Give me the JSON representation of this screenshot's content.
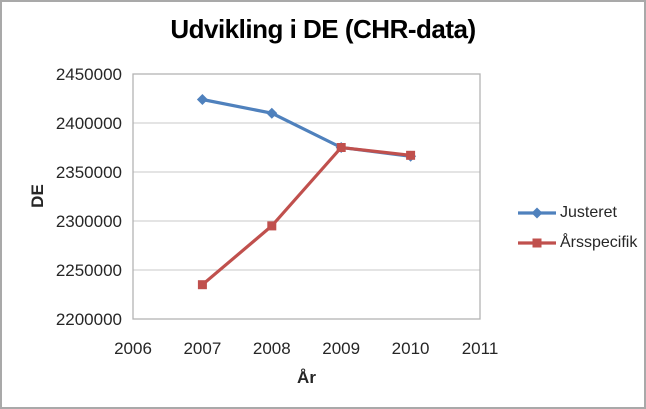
{
  "chart_data": {
    "type": "line",
    "title": "Udvikling i DE (CHR-data)",
    "xlabel": "År",
    "ylabel": "DE",
    "x": [
      2007,
      2008,
      2009,
      2010
    ],
    "series": [
      {
        "name": "Justeret",
        "color": "#4F81BD",
        "marker": "diamond",
        "values": [
          2424000,
          2410000,
          2375000,
          2366000
        ]
      },
      {
        "name": "Årsspecifik",
        "color": "#C0504D",
        "marker": "square",
        "values": [
          2235000,
          2295000,
          2375000,
          2367000
        ]
      }
    ],
    "xlim": [
      2006,
      2011
    ],
    "ylim": [
      2200000,
      2450000
    ],
    "x_ticks": [
      2006,
      2007,
      2008,
      2009,
      2010,
      2011
    ],
    "y_ticks": [
      2200000,
      2250000,
      2300000,
      2350000,
      2400000,
      2450000
    ],
    "grid": "horizontal-only",
    "legend_position": "right"
  }
}
